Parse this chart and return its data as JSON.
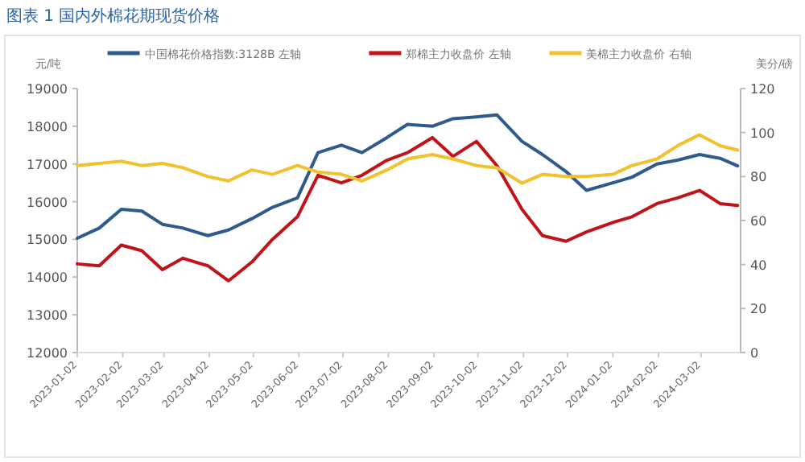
{
  "chart_data": {
    "type": "line",
    "title": "图表 1 国内外棉花期现货价格",
    "ylabel": "元/吨",
    "y2label": "美分/磅",
    "legend": "top",
    "x": [
      "2023-01-02",
      "2023-01-17",
      "2023-02-01",
      "2023-02-15",
      "2023-03-01",
      "2023-03-15",
      "2023-04-01",
      "2023-04-15",
      "2023-05-01",
      "2023-05-15",
      "2023-06-01",
      "2023-06-15",
      "2023-07-01",
      "2023-07-15",
      "2023-08-01",
      "2023-08-15",
      "2023-09-01",
      "2023-09-15",
      "2023-10-01",
      "2023-10-15",
      "2023-11-01",
      "2023-11-15",
      "2023-12-01",
      "2023-12-15",
      "2024-01-02",
      "2024-01-15",
      "2024-02-01",
      "2024-02-15",
      "2024-03-01",
      "2024-03-15",
      "2024-03-27"
    ],
    "xlim": [
      "2023-01-02",
      "2024-03-29"
    ],
    "xticks": [
      "2023-01-02",
      "2023-02-02",
      "2023-03-02",
      "2023-04-02",
      "2023-05-02",
      "2023-06-02",
      "2023-07-02",
      "2023-08-02",
      "2023-09-02",
      "2023-10-02",
      "2023-11-02",
      "2023-12-02",
      "2024-01-02",
      "2024-02-02",
      "2024-03-02"
    ],
    "ylim": [
      12000,
      19000
    ],
    "yticks": [
      12000,
      13000,
      14000,
      15000,
      16000,
      17000,
      18000,
      19000
    ],
    "y2lim": [
      0,
      120
    ],
    "y2ticks": [
      0,
      20,
      40,
      60,
      80,
      100,
      120
    ],
    "series": [
      {
        "name": "中国棉花价格指数:3128B 左轴",
        "color": "#2e5b8c",
        "values": [
          15030,
          15300,
          15800,
          15750,
          15400,
          15300,
          15100,
          15250,
          15550,
          15850,
          16100,
          17300,
          17500,
          17300,
          17700,
          18050,
          18000,
          18200,
          18250,
          18300,
          17600,
          17250,
          16800,
          16300,
          16500,
          16650,
          17000,
          17100,
          17250,
          17150,
          16950
        ]
      },
      {
        "name": "郑棉主力收盘价 左轴",
        "color": "#c0141b",
        "values": [
          14350,
          14300,
          14850,
          14700,
          14200,
          14500,
          14300,
          13900,
          14400,
          15000,
          15600,
          16700,
          16500,
          16700,
          17100,
          17300,
          17700,
          17200,
          17600,
          16950,
          15800,
          15100,
          14950,
          15200,
          15450,
          15600,
          15950,
          16100,
          16300,
          15950,
          15900
        ]
      },
      {
        "name": "美棉主力收盘价 右轴",
        "color": "#f2c12e",
        "axis": "y2",
        "values": [
          85,
          86,
          87,
          85,
          86,
          84,
          80,
          78,
          83,
          81,
          85,
          82,
          81,
          78,
          83,
          88,
          90,
          88,
          85,
          84,
          77,
          81,
          80,
          80,
          81,
          85,
          88,
          94,
          99,
          94,
          92
        ]
      }
    ]
  }
}
